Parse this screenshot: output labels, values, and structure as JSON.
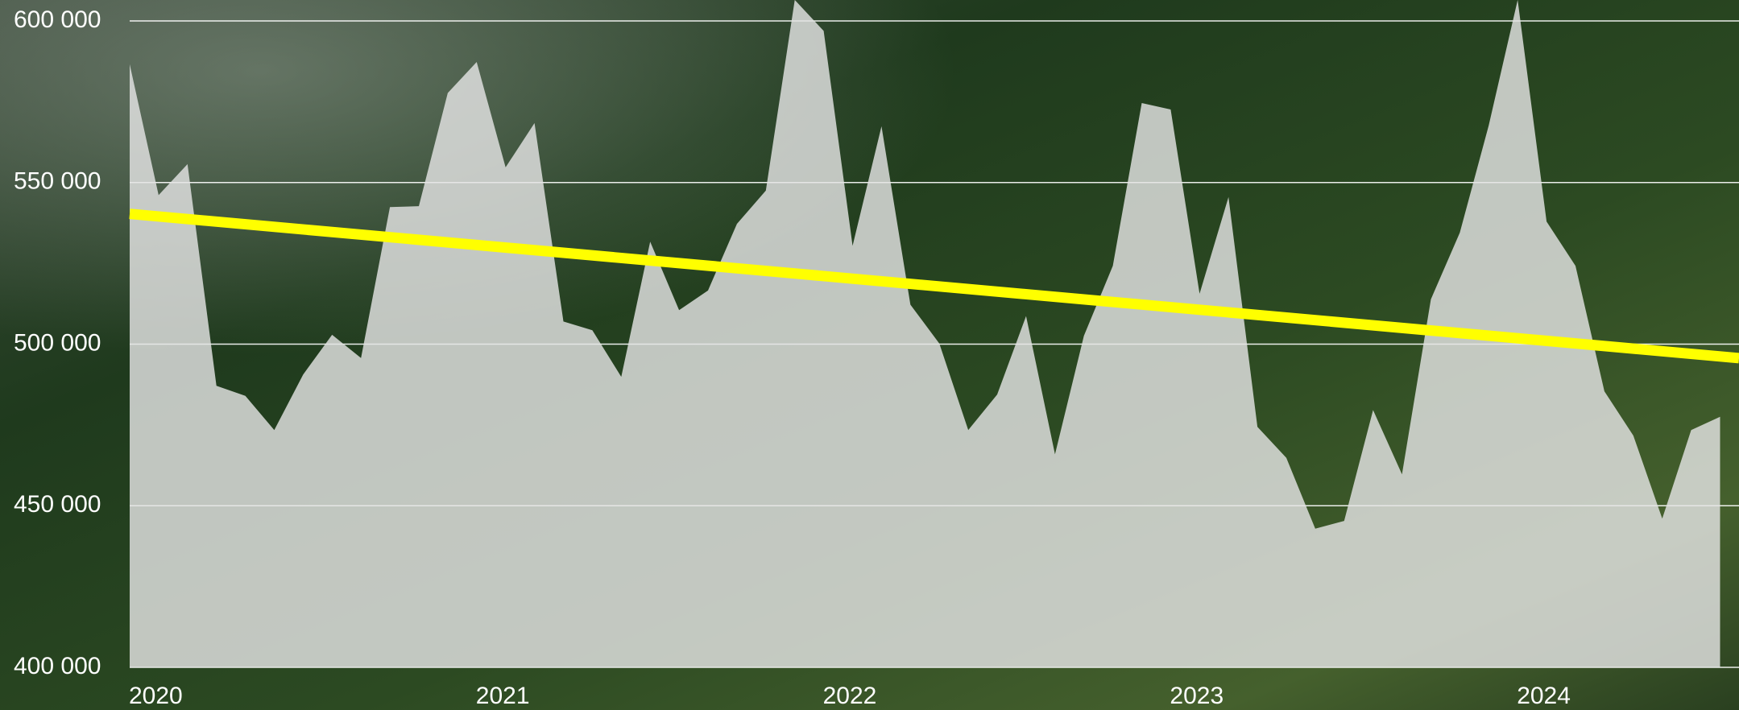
{
  "chart_data": {
    "type": "area",
    "categories": [
      "2020",
      null,
      null,
      null,
      null,
      null,
      null,
      null,
      null,
      null,
      null,
      null,
      "2021",
      null,
      null,
      null,
      null,
      null,
      null,
      null,
      null,
      null,
      null,
      null,
      "2022",
      null,
      null,
      null,
      null,
      null,
      null,
      null,
      null,
      null,
      null,
      null,
      "2023",
      null,
      null,
      null,
      null,
      null,
      null,
      null,
      null,
      null,
      null,
      null,
      "2024",
      null,
      null,
      null,
      null,
      null,
      null,
      null
    ],
    "series": [
      {
        "color": "rgba(228,228,228,0.82)",
        "values": [
          586600,
          546100,
          555700,
          487100,
          484000,
          473400,
          490600,
          502900,
          495700,
          542400,
          542700,
          577700,
          587300,
          554700,
          568400,
          507000,
          504300,
          489900,
          531700,
          510500,
          516600,
          537200,
          547500,
          606500,
          596900,
          530400,
          567400,
          512200,
          500200,
          473400,
          484400,
          508700,
          465900,
          502600,
          524200,
          574600,
          572600,
          515600,
          545500,
          474400,
          464800,
          442900,
          445300,
          479600,
          459700,
          513900,
          534500,
          567700,
          606500,
          537900,
          524200,
          485400,
          471700,
          446000,
          473400,
          477500
        ]
      }
    ],
    "trend": {
      "color": "#ffff00",
      "values": [
        540300,
        496200
      ]
    },
    "ylim": [
      400000,
      600000
    ],
    "yticks": [
      {
        "value": 400000,
        "label": "400 000"
      },
      {
        "value": 450000,
        "label": "450 000"
      },
      {
        "value": 500000,
        "label": "500 000"
      },
      {
        "value": 550000,
        "label": "550 000"
      },
      {
        "value": 600000,
        "label": "600 000"
      }
    ],
    "grid": true
  }
}
